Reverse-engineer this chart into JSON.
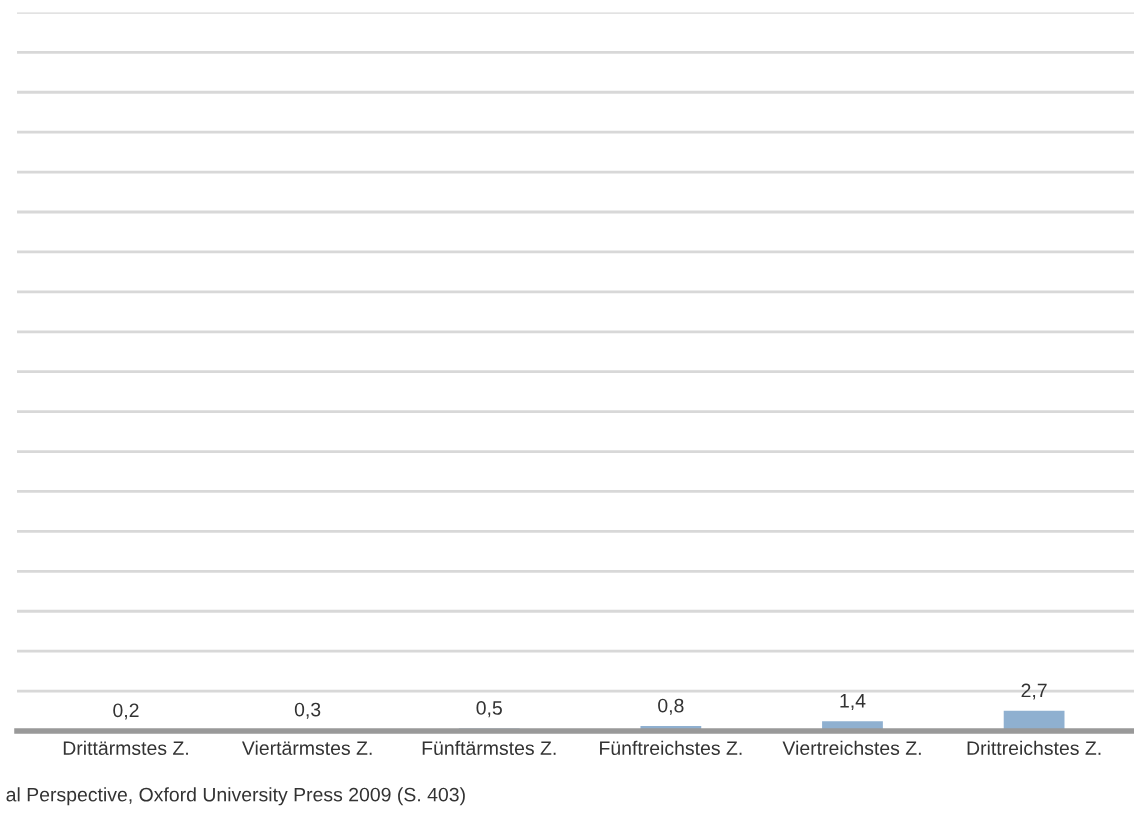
{
  "chart_data": {
    "type": "bar",
    "categories": [
      "Drittärmstes Z.",
      "Viertärmstes Z.",
      "Fünftärmstes Z.",
      "Fünftreichstes Z.",
      "Viertreichstes Z.",
      "Drittreichstes Z."
    ],
    "values": [
      0.2,
      0.3,
      0.5,
      0.8,
      1.4,
      2.7
    ],
    "value_labels": [
      "0,2",
      "0,3",
      "0,5",
      "0,8",
      "1,4",
      "2,7"
    ],
    "color": "#8fb0d0",
    "ylim": [
      0,
      90
    ],
    "yticks": [
      {
        "value": 0,
        "label": null
      },
      {
        "value": 5,
        "label": null
      },
      {
        "value": 10,
        "label": null
      },
      {
        "value": 15,
        "label": null
      },
      {
        "value": 20,
        "label": null
      },
      {
        "value": 25,
        "label": null
      },
      {
        "value": 30,
        "label": null
      },
      {
        "value": 35,
        "label": null
      },
      {
        "value": 40,
        "label": null
      },
      {
        "value": 45,
        "label": null
      },
      {
        "value": 50,
        "label": null
      },
      {
        "value": 55,
        "label": null
      },
      {
        "value": 60,
        "label": null
      },
      {
        "value": 65,
        "label": null
      },
      {
        "value": 70,
        "label": null
      },
      {
        "value": 75,
        "label": null
      },
      {
        "value": 80,
        "label": null
      },
      {
        "value": 85,
        "label": null
      },
      {
        "value": 90,
        "label": null
      }
    ],
    "grid": "y",
    "tick_labels": "x",
    "annotations": [
      "al Perspective, Oxford University Press 2009 (S. 403)"
    ]
  }
}
